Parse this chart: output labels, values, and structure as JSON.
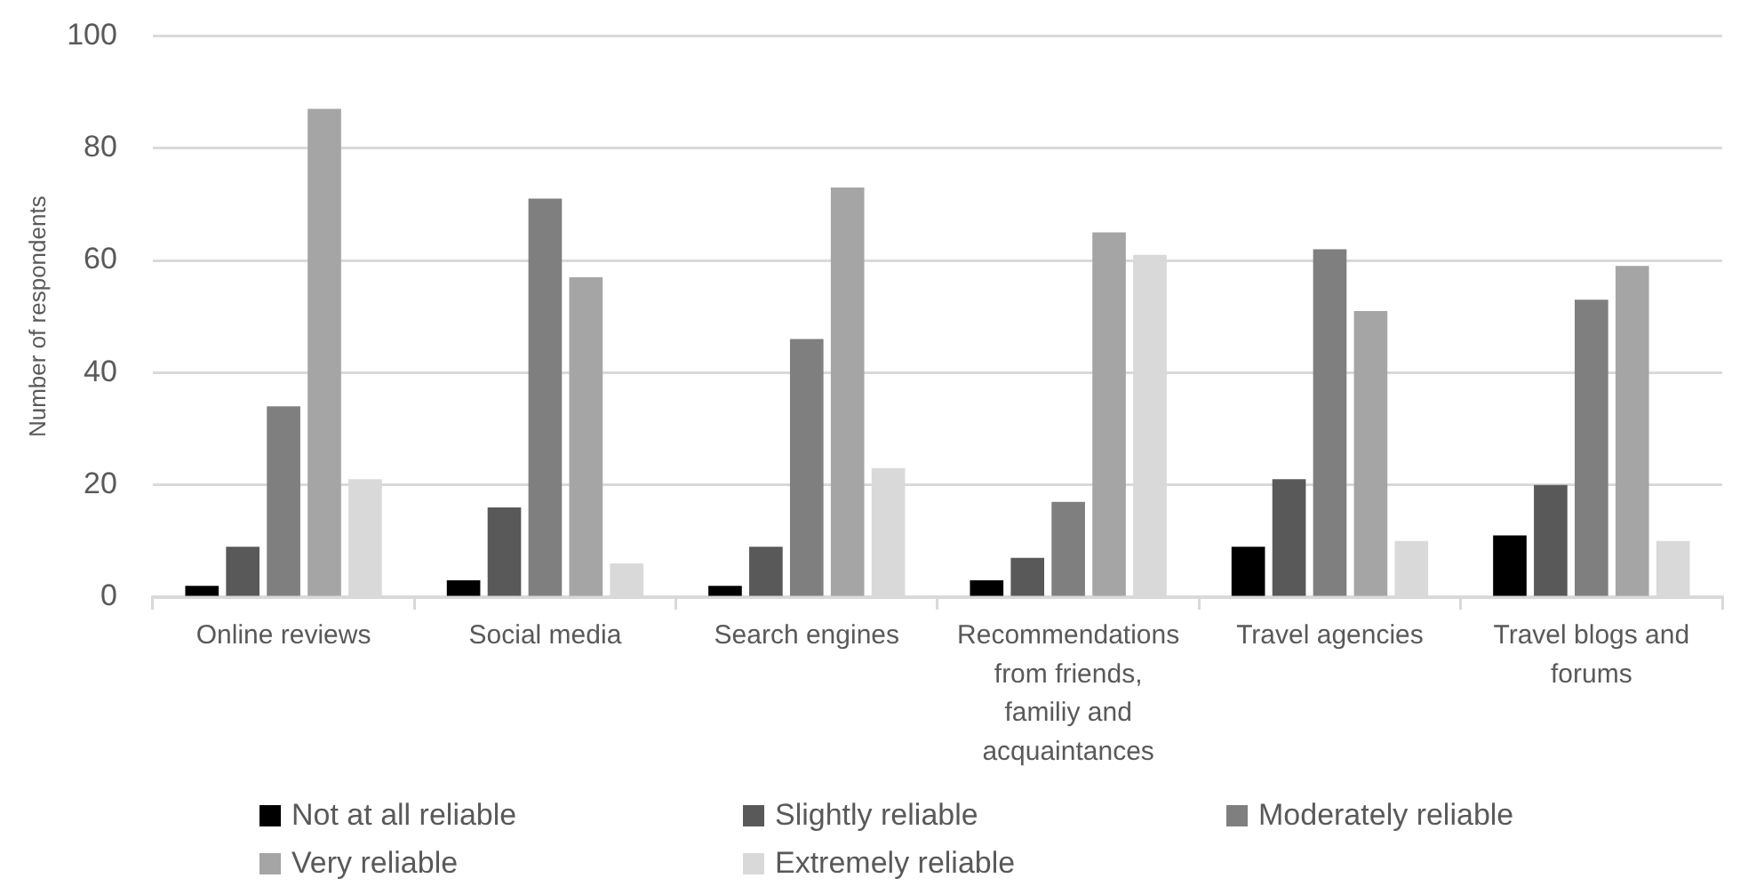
{
  "chart_data": {
    "type": "bar",
    "ylabel": "Number of respondents",
    "categories": [
      "Online reviews",
      "Social media",
      "Search engines",
      "Recommendations from friends, familiy and acquaintances",
      "Travel agencies",
      "Travel blogs and forums"
    ],
    "series": [
      {
        "name": "Not at all reliable",
        "color": "#000000",
        "values": [
          2,
          3,
          2,
          3,
          9,
          11
        ]
      },
      {
        "name": "Slightly reliable",
        "color": "#595959",
        "values": [
          9,
          16,
          9,
          7,
          21,
          20
        ]
      },
      {
        "name": "Moderately reliable",
        "color": "#7f7f7f",
        "values": [
          34,
          71,
          46,
          17,
          62,
          53
        ]
      },
      {
        "name": "Very reliable",
        "color": "#a5a5a5",
        "values": [
          87,
          57,
          73,
          65,
          51,
          59
        ]
      },
      {
        "name": "Extremely reliable",
        "color": "#d9d9d9",
        "values": [
          21,
          6,
          23,
          61,
          10,
          10
        ]
      }
    ],
    "ylim": [
      0,
      100
    ],
    "yticks": [
      0,
      20,
      40,
      60,
      80,
      100
    ],
    "grid": "y",
    "legend": "bottom"
  }
}
